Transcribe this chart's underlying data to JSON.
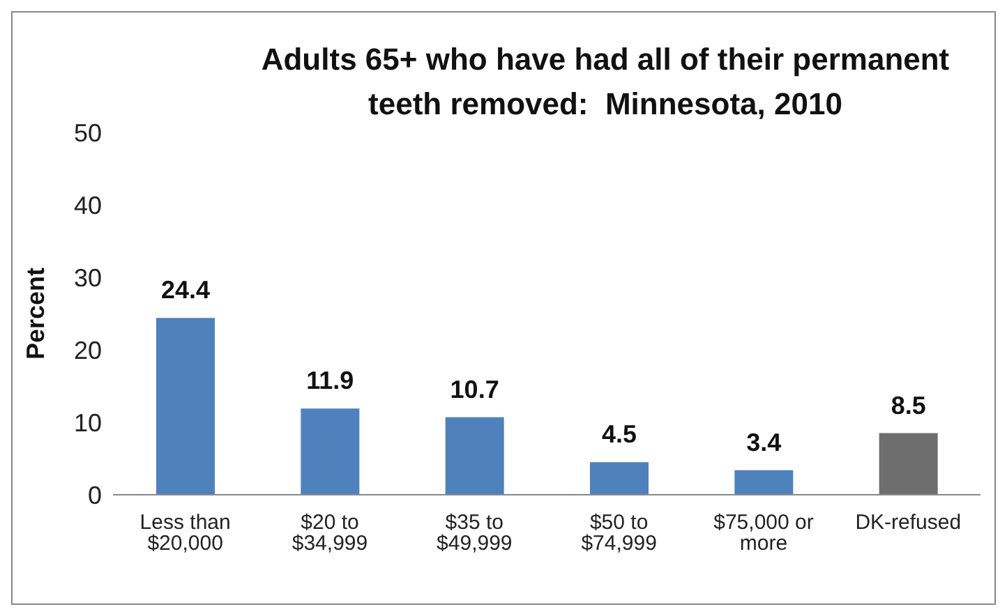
{
  "chart_data": {
    "type": "bar",
    "title": "Adults 65+ who have had all of their permanent teeth removed:  Minnesota, 2010",
    "ylabel": "Percent",
    "categories": [
      "Less than $20,000",
      "$20 to $34,999",
      "$35 to $49,999",
      "$50 to $74,999",
      "$75,000 or more",
      "DK-refused"
    ],
    "values": [
      24.4,
      11.9,
      10.7,
      4.5,
      3.4,
      8.5
    ],
    "colors": [
      "#4f81bd",
      "#4f81bd",
      "#4f81bd",
      "#4f81bd",
      "#4f81bd",
      "#6e6e6e"
    ],
    "ylim": [
      0,
      50
    ],
    "yticks": [
      0,
      10,
      20,
      30,
      40,
      50
    ],
    "data_labels": true
  }
}
